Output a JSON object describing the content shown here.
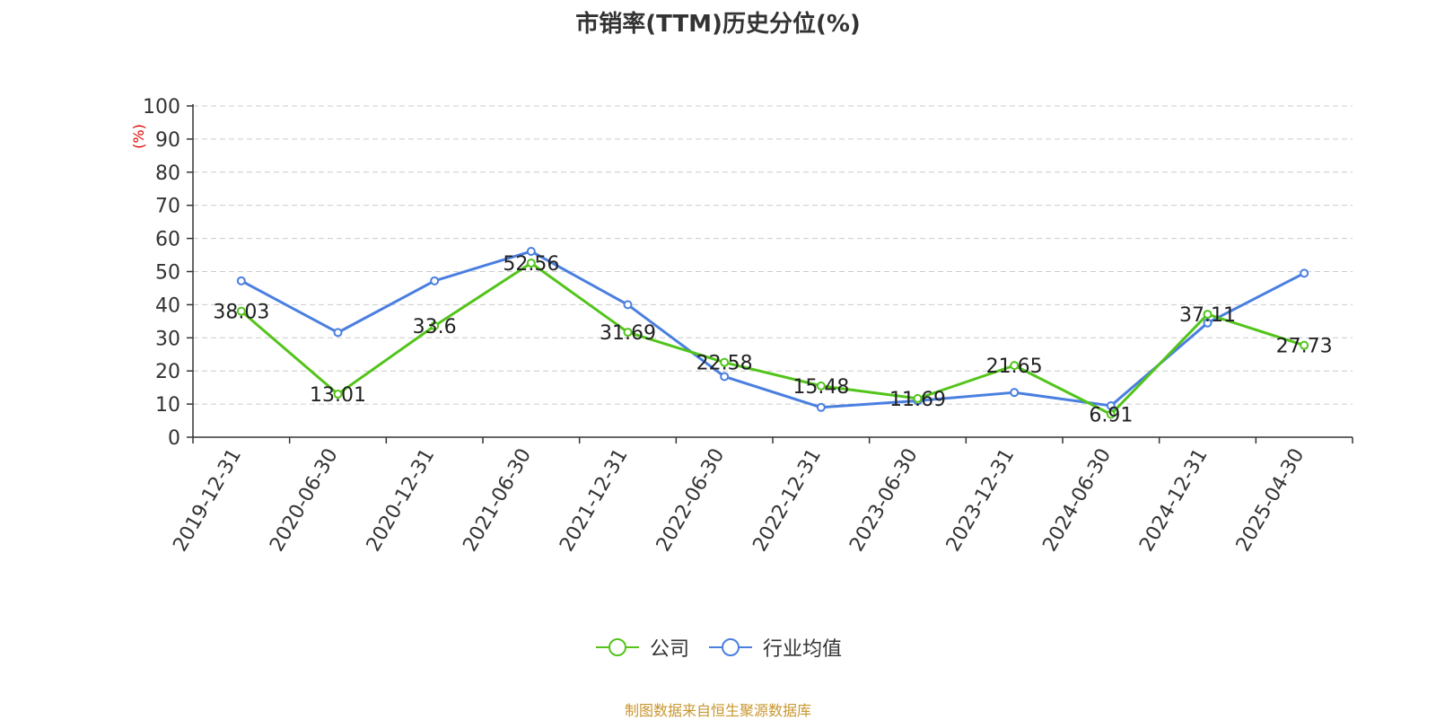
{
  "chart_data": {
    "type": "line",
    "title": "市销率(TTM)历史分位(%)",
    "ylabel": "(%)",
    "ylim": [
      0,
      100
    ],
    "yticks": [
      0,
      10,
      20,
      30,
      40,
      50,
      60,
      70,
      80,
      90,
      100
    ],
    "grid": true,
    "legend_placement": "bottom",
    "categories": [
      "2019-12-31",
      "2020-06-30",
      "2020-12-31",
      "2021-06-30",
      "2021-12-31",
      "2022-06-30",
      "2022-12-31",
      "2023-06-30",
      "2023-12-31",
      "2024-06-30",
      "2024-12-31",
      "2025-04-30"
    ],
    "series": [
      {
        "name": "公司",
        "color": "#52c41a",
        "values": [
          38.03,
          13.01,
          33.6,
          52.56,
          31.69,
          22.58,
          15.48,
          11.69,
          21.65,
          6.91,
          37.11,
          27.73
        ],
        "labels": [
          "38.03",
          "13.01",
          "33.6",
          "52.56",
          "31.69",
          "22.58",
          "15.48",
          "11.69",
          "21.65",
          "6.91",
          "37.11",
          "27.73"
        ]
      },
      {
        "name": "行业均值",
        "color": "#4a7fe0",
        "values": [
          47.2,
          31.6,
          47.2,
          56.1,
          40.0,
          18.3,
          9.0,
          11.0,
          13.5,
          9.5,
          34.5,
          49.5
        ]
      }
    ]
  },
  "source_note": "制图数据来自恒生聚源数据库"
}
